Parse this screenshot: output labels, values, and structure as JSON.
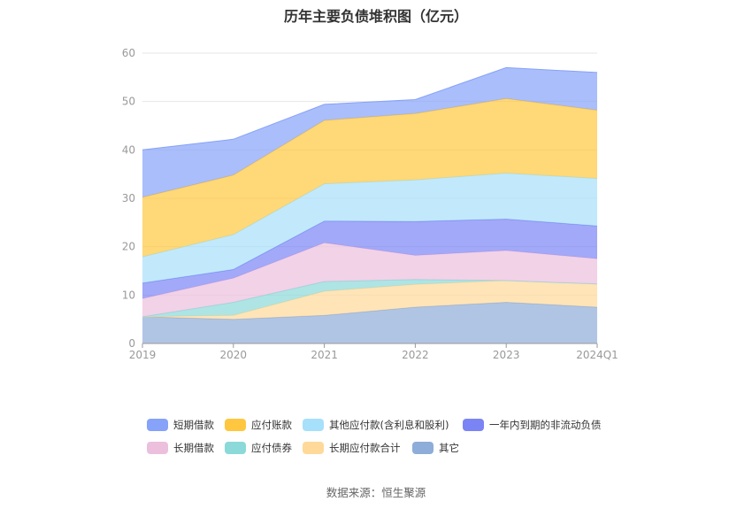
{
  "chart_data": {
    "type": "area",
    "stacked": true,
    "title": "历年主要负债堆积图（亿元）",
    "categories": [
      "2019",
      "2020",
      "2021",
      "2022",
      "2023",
      "2024Q1"
    ],
    "ylim": [
      0,
      60
    ],
    "yticks": [
      "0",
      "10",
      "20",
      "30",
      "40",
      "50",
      "60"
    ],
    "grid": true,
    "legend_position": "bottom",
    "series": [
      {
        "name": "其它",
        "color": "#8eadd9",
        "values": [
          5.5,
          5.0,
          5.8,
          7.5,
          8.5,
          7.5
        ]
      },
      {
        "name": "长期应付款合计",
        "color": "#ffd99a",
        "values": [
          0.0,
          0.8,
          5.0,
          4.7,
          4.5,
          4.8
        ]
      },
      {
        "name": "应付债券",
        "color": "#8bd9d9",
        "values": [
          0.0,
          2.7,
          2.0,
          1.0,
          0.0,
          0.0
        ]
      },
      {
        "name": "长期借款",
        "color": "#ecbfdd",
        "values": [
          3.8,
          5.0,
          8.0,
          5.0,
          6.2,
          5.2
        ]
      },
      {
        "name": "一年内到期的非流动负债",
        "color": "#7b84f5",
        "values": [
          3.2,
          1.8,
          4.5,
          7.0,
          6.5,
          6.8
        ]
      },
      {
        "name": "其他应付款(含利息和股利)",
        "color": "#a7e0fa",
        "values": [
          5.4,
          7.2,
          7.7,
          8.6,
          9.5,
          9.8
        ]
      },
      {
        "name": "应付账款",
        "color": "#ffc73f",
        "values": [
          12.3,
          12.3,
          13.1,
          13.7,
          15.4,
          14.1
        ]
      },
      {
        "name": "短期借款",
        "color": "#86a2f9",
        "values": [
          9.8,
          7.4,
          3.3,
          2.9,
          6.4,
          7.8
        ]
      }
    ]
  },
  "legend": [
    {
      "label": "短期借款",
      "color": "#86a2f9"
    },
    {
      "label": "应付账款",
      "color": "#ffc73f"
    },
    {
      "label": "其他应付款(含利息和股利)",
      "color": "#a7e0fa"
    },
    {
      "label": "一年内到期的非流动负债",
      "color": "#7b84f5"
    },
    {
      "label": "长期借款",
      "color": "#ecbfdd"
    },
    {
      "label": "应付债券",
      "color": "#8bd9d9"
    },
    {
      "label": "长期应付款合计",
      "color": "#ffd99a"
    },
    {
      "label": "其它",
      "color": "#8eadd9"
    }
  ],
  "source": "数据来源：恒生聚源"
}
